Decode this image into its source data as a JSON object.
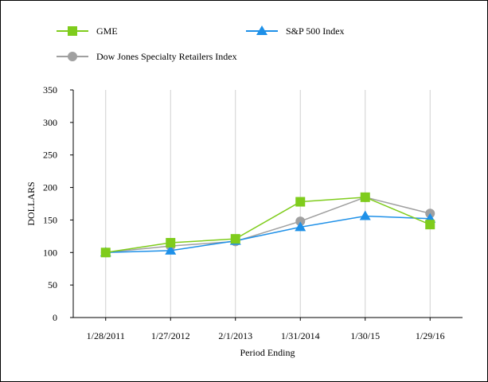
{
  "chart_data": {
    "type": "line",
    "title": "",
    "xlabel": "Period Ending",
    "ylabel": "DOLLARS",
    "categories": [
      "1/28/2011",
      "1/27/2012",
      "2/1/2013",
      "1/31/2014",
      "1/30/15",
      "1/29/16"
    ],
    "ylim": [
      0,
      350
    ],
    "yticks": [
      "0",
      "50",
      "100",
      "150",
      "200",
      "250",
      "300",
      "350"
    ],
    "grid": "vertical",
    "legend_position": "top",
    "series": [
      {
        "name": "GME",
        "marker": "square",
        "color": "#7fcc1c",
        "values": [
          100,
          115,
          121,
          178,
          185,
          143
        ]
      },
      {
        "name": "S&P 500 Index",
        "marker": "triangle",
        "color": "#1e90e8",
        "values": [
          100,
          103,
          118,
          139,
          156,
          152
        ]
      },
      {
        "name": "Dow Jones Specialty Retailers Index",
        "marker": "circle",
        "color": "#a0a0a0",
        "values": [
          100,
          110,
          117,
          148,
          185,
          160
        ]
      }
    ]
  }
}
